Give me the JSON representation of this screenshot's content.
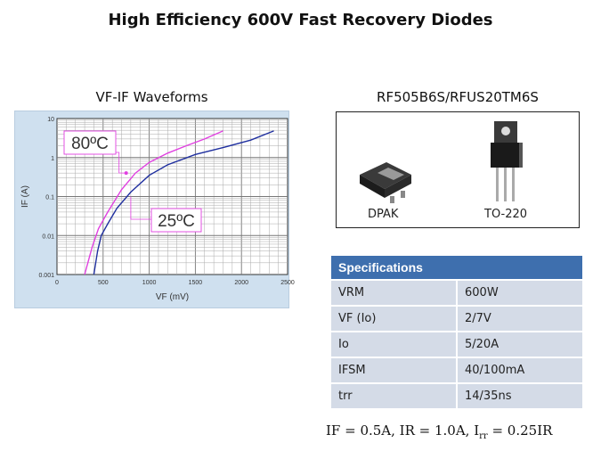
{
  "title": "High Efficiency 600V Fast Recovery Diodes",
  "chart_heading": "VF-IF Waveforms",
  "package_heading": "RF505B6S/RFUS20TM6S",
  "packages": [
    {
      "name": "DPAK",
      "icon": "dpak-package-icon"
    },
    {
      "name": "TO-220",
      "icon": "to220-package-icon"
    }
  ],
  "colors": {
    "curve_80": "#e040e0",
    "curve_25": "#1f2f9f",
    "table_header": "#3e6fae",
    "table_row": "#d4dbe7"
  },
  "chart_data": {
    "type": "line",
    "xlabel": "VF (mV)",
    "ylabel": "IF (A)",
    "xlim": [
      0,
      2500
    ],
    "ylim": [
      0.001,
      10
    ],
    "yscale": "log",
    "xticks": [
      "0",
      "500",
      "1000",
      "1500",
      "2000",
      "2500"
    ],
    "yticks": [
      "0.001",
      "0.01",
      "0.1",
      "1",
      "10"
    ],
    "grid": true,
    "series": [
      {
        "name": "80ºC",
        "color": "#e040e0",
        "points": [
          [
            300,
            0.001
          ],
          [
            380,
            0.005
          ],
          [
            450,
            0.015
          ],
          [
            550,
            0.04
          ],
          [
            700,
            0.15
          ],
          [
            850,
            0.4
          ],
          [
            1000,
            0.75
          ],
          [
            1200,
            1.3
          ],
          [
            1400,
            2.0
          ],
          [
            1600,
            3.0
          ],
          [
            1800,
            4.8
          ]
        ]
      },
      {
        "name": "25ºC",
        "color": "#1f2f9f",
        "points": [
          [
            400,
            0.001
          ],
          [
            440,
            0.004
          ],
          [
            480,
            0.01
          ],
          [
            550,
            0.02
          ],
          [
            650,
            0.05
          ],
          [
            800,
            0.13
          ],
          [
            1000,
            0.35
          ],
          [
            1200,
            0.65
          ],
          [
            1500,
            1.2
          ],
          [
            1800,
            1.8
          ],
          [
            2100,
            2.8
          ],
          [
            2350,
            4.8
          ]
        ]
      }
    ]
  },
  "spec_table": {
    "header": "Specifications",
    "rows": [
      {
        "param": "VRM",
        "value": "600W"
      },
      {
        "param": "VF (Io)",
        "value": "2/7V"
      },
      {
        "param": "Io",
        "value": "5/20A"
      },
      {
        "param": "IFSM",
        "value": "40/100mA"
      },
      {
        "param": "trr",
        "value": "14/35ns"
      }
    ]
  },
  "conditions": {
    "text_a": "IF = 0.5A, IR = 1.0A, I",
    "sub": "rr",
    "text_b": " = 0.25IR"
  }
}
